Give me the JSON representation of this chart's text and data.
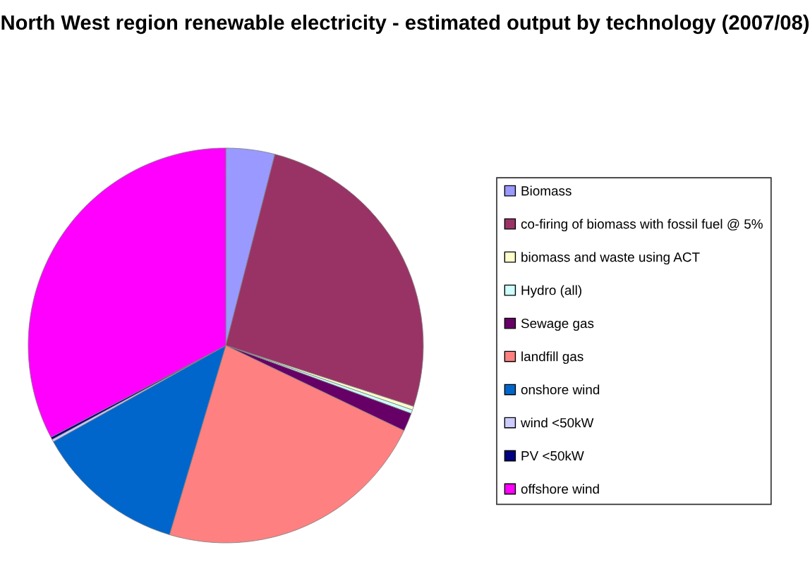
{
  "chart_data": {
    "type": "pie",
    "title": "North West region renewable electricity - estimated output by technology (2007/08)",
    "categories": [
      "Biomass",
      "co-firing of biomass with fossil fuel @ 5%",
      "biomass and waste using ACT",
      "Hydro (all)",
      "Sewage gas",
      "landfill gas",
      "onshore wind",
      "wind <50kW",
      "PV <50kW",
      "offshore wind"
    ],
    "values": [
      4,
      26,
      0.3,
      0.3,
      1.5,
      22.5,
      12.3,
      0.2,
      0.2,
      32.7
    ],
    "colors": [
      "#9999ff",
      "#993366",
      "#ffffcc",
      "#ccffff",
      "#660066",
      "#ff8080",
      "#0066cc",
      "#ccccff",
      "#000080",
      "#ff00ff"
    ],
    "legend": "right"
  }
}
